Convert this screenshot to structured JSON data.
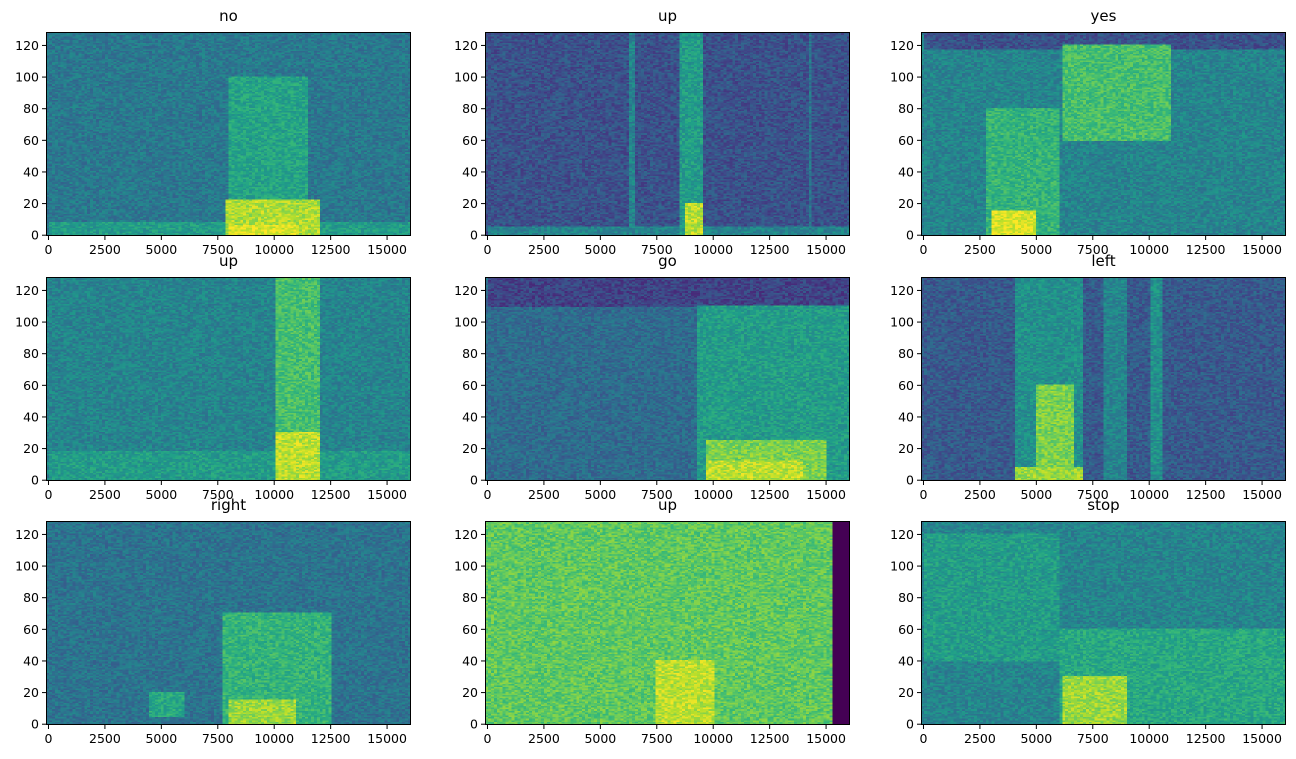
{
  "chart_data": [
    {
      "type": "heatmap",
      "title": "no",
      "xlim": [
        -110,
        16060
      ],
      "ylim": [
        -0.5,
        128.5
      ],
      "xticks": [
        0,
        2500,
        5000,
        7500,
        10000,
        12500,
        15000
      ],
      "yticks": [
        0,
        20,
        40,
        60,
        80,
        100,
        120
      ],
      "background": 0.4,
      "regions": [
        [
          0,
          16000,
          0,
          8,
          0.55
        ],
        [
          8000,
          11500,
          22,
          100,
          0.58
        ],
        [
          7800,
          12000,
          0,
          22,
          0.88
        ],
        [
          8000,
          11000,
          0,
          6,
          0.95
        ]
      ]
    },
    {
      "type": "heatmap",
      "title": "up",
      "xlim": [
        -110,
        16060
      ],
      "ylim": [
        -0.5,
        128.5
      ],
      "xticks": [
        0,
        2500,
        5000,
        7500,
        10000,
        12500,
        15000
      ],
      "yticks": [
        0,
        20,
        40,
        60,
        80,
        100,
        120
      ],
      "background": 0.25,
      "regions": [
        [
          0,
          16000,
          0,
          5,
          0.45
        ],
        [
          6300,
          6500,
          0,
          128,
          0.45
        ],
        [
          8500,
          9500,
          0,
          128,
          0.55
        ],
        [
          8800,
          9500,
          0,
          20,
          0.9
        ],
        [
          14200,
          14400,
          0,
          128,
          0.4
        ]
      ]
    },
    {
      "type": "heatmap",
      "title": "yes",
      "xlim": [
        -110,
        16060
      ],
      "ylim": [
        -0.5,
        128.5
      ],
      "xticks": [
        0,
        2500,
        5000,
        7500,
        10000,
        12500,
        15000
      ],
      "yticks": [
        0,
        20,
        40,
        60,
        80,
        100,
        120
      ],
      "background": 0.45,
      "regions": [
        [
          0,
          16000,
          118,
          128,
          0.25
        ],
        [
          2800,
          6000,
          0,
          80,
          0.65
        ],
        [
          3000,
          5000,
          0,
          15,
          0.95
        ],
        [
          6200,
          11000,
          60,
          120,
          0.7
        ]
      ]
    },
    {
      "type": "heatmap",
      "title": "up",
      "xlim": [
        -110,
        16060
      ],
      "ylim": [
        -0.5,
        128.5
      ],
      "xticks": [
        0,
        2500,
        5000,
        7500,
        10000,
        12500,
        15000
      ],
      "yticks": [
        0,
        20,
        40,
        60,
        80,
        100,
        120
      ],
      "background": 0.45,
      "regions": [
        [
          0,
          16000,
          0,
          18,
          0.55
        ],
        [
          10000,
          12000,
          0,
          128,
          0.7
        ],
        [
          10000,
          12000,
          0,
          30,
          0.9
        ]
      ]
    },
    {
      "type": "heatmap",
      "title": "go",
      "xlim": [
        -110,
        16060
      ],
      "ylim": [
        -0.5,
        128.5
      ],
      "xticks": [
        0,
        2500,
        5000,
        7500,
        10000,
        12500,
        15000
      ],
      "yticks": [
        0,
        20,
        40,
        60,
        80,
        100,
        120
      ],
      "background": 0.35,
      "regions": [
        [
          0,
          16000,
          110,
          128,
          0.2
        ],
        [
          9300,
          16000,
          0,
          110,
          0.55
        ],
        [
          9700,
          15000,
          0,
          25,
          0.8
        ],
        [
          9700,
          14000,
          0,
          12,
          0.9
        ]
      ]
    },
    {
      "type": "heatmap",
      "title": "left",
      "xlim": [
        -110,
        16060
      ],
      "ylim": [
        -0.5,
        128.5
      ],
      "xticks": [
        0,
        2500,
        5000,
        7500,
        10000,
        12500,
        15000
      ],
      "yticks": [
        0,
        20,
        40,
        60,
        80,
        100,
        120
      ],
      "background": 0.28,
      "regions": [
        [
          4000,
          7000,
          0,
          128,
          0.5
        ],
        [
          5000,
          6700,
          0,
          60,
          0.8
        ],
        [
          4000,
          7000,
          0,
          8,
          0.85
        ],
        [
          8000,
          9000,
          0,
          128,
          0.45
        ],
        [
          10000,
          10600,
          0,
          128,
          0.5
        ]
      ]
    },
    {
      "type": "heatmap",
      "title": "right",
      "xlim": [
        -110,
        16060
      ],
      "ylim": [
        -0.5,
        128.5
      ],
      "xticks": [
        0,
        2500,
        5000,
        7500,
        10000,
        12500,
        15000
      ],
      "yticks": [
        0,
        20,
        40,
        60,
        80,
        100,
        120
      ],
      "background": 0.38,
      "regions": [
        [
          7700,
          12500,
          0,
          70,
          0.65
        ],
        [
          8000,
          11000,
          0,
          15,
          0.85
        ],
        [
          4500,
          6000,
          5,
          20,
          0.6
        ]
      ]
    },
    {
      "type": "heatmap",
      "title": "up",
      "xlim": [
        -110,
        16060
      ],
      "ylim": [
        -0.5,
        128.5
      ],
      "xticks": [
        0,
        2500,
        5000,
        7500,
        10000,
        12500,
        15000
      ],
      "yticks": [
        0,
        20,
        40,
        60,
        80,
        100,
        120
      ],
      "background": 0.75,
      "regions": [
        [
          7500,
          10000,
          0,
          40,
          0.9
        ],
        [
          15300,
          16060,
          0,
          128.5,
          0.0
        ]
      ]
    },
    {
      "type": "heatmap",
      "title": "stop",
      "xlim": [
        -110,
        16060
      ],
      "ylim": [
        -0.5,
        128.5
      ],
      "xticks": [
        0,
        2500,
        5000,
        7500,
        10000,
        12500,
        15000
      ],
      "yticks": [
        0,
        20,
        40,
        60,
        80,
        100,
        120
      ],
      "background": 0.45,
      "regions": [
        [
          0,
          6000,
          40,
          120,
          0.55
        ],
        [
          6000,
          16000,
          0,
          60,
          0.6
        ],
        [
          6200,
          9000,
          0,
          30,
          0.85
        ]
      ]
    }
  ],
  "colormap": "viridis"
}
